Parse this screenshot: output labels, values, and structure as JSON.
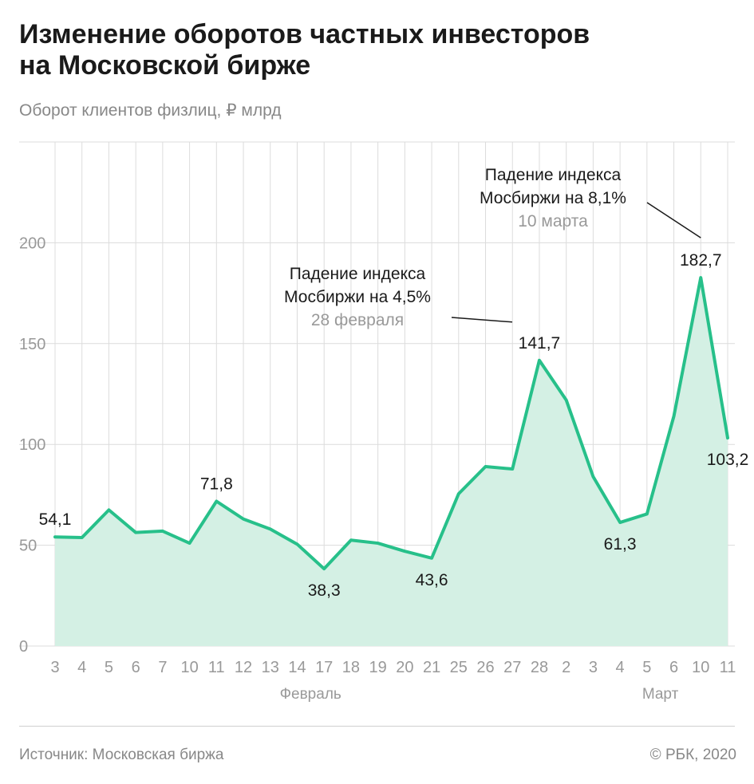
{
  "title_lines": [
    "Изменение оборотов частных инвесторов",
    "на Московской бирже"
  ],
  "subtitle": "Оборот клиентов физлиц, ₽ млрд",
  "source": "Источник: Московская биржа",
  "copyright": "© РБК, 2020",
  "colors": {
    "line": "#27c08a",
    "fill": "#d4f0e4",
    "grid": "#dcdcdc",
    "tick_text": "#999999",
    "label_text": "#1a1a1a",
    "note_date": "#999999"
  },
  "chart_data": {
    "type": "area",
    "categories": [
      "3",
      "4",
      "5",
      "6",
      "7",
      "10",
      "11",
      "12",
      "13",
      "14",
      "17",
      "18",
      "19",
      "20",
      "21",
      "25",
      "26",
      "27",
      "28",
      "2",
      "3",
      "4",
      "5",
      "6",
      "10",
      "11"
    ],
    "month_labels": [
      {
        "label": "Февраль",
        "center_index": 10
      },
      {
        "label": "Март",
        "center_index": 23
      }
    ],
    "series": [
      {
        "values": [
          54.1,
          53.8,
          67.5,
          56.3,
          57.0,
          51.0,
          71.8,
          63.0,
          58.0,
          50.5,
          38.3,
          52.5,
          51.0,
          47.0,
          43.6,
          75.5,
          89.0,
          87.8,
          141.7,
          122.0,
          84.0,
          61.3,
          65.5,
          114.0,
          182.7,
          103.2
        ]
      }
    ],
    "ylim": [
      0,
      250
    ],
    "yticks": [
      0,
      50,
      100,
      150,
      200
    ],
    "grid": true,
    "data_labels": [
      {
        "index": 0,
        "text": "54,1",
        "pos": "above"
      },
      {
        "index": 6,
        "text": "71,8",
        "pos": "above"
      },
      {
        "index": 10,
        "text": "38,3",
        "pos": "below"
      },
      {
        "index": 14,
        "text": "43,6",
        "pos": "below"
      },
      {
        "index": 18,
        "text": "141,7",
        "pos": "above"
      },
      {
        "index": 21,
        "text": "61,3",
        "pos": "below"
      },
      {
        "index": 24,
        "text": "182,7",
        "pos": "above"
      },
      {
        "index": 25,
        "text": "103,2",
        "pos": "below"
      }
    ],
    "annotations": [
      {
        "index": 18,
        "lines": [
          "Падение индекса",
          "Мосбиржи на 4,5%"
        ],
        "date": "28 февраля"
      },
      {
        "index": 24,
        "lines": [
          "Падение индекса",
          "Мосбиржи на 8,1%"
        ],
        "date": "10 марта"
      }
    ]
  }
}
